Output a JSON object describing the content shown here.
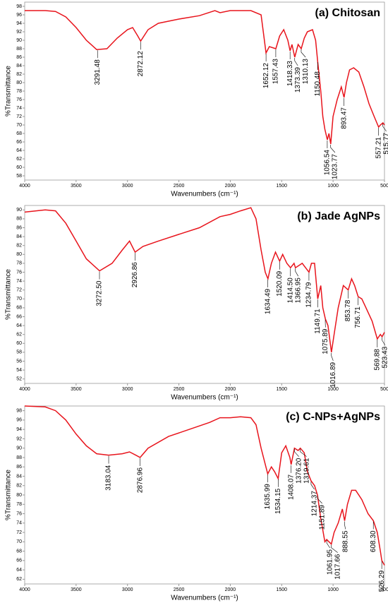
{
  "chart_data": [
    {
      "type": "line",
      "title": "(a) Chitosan",
      "xlabel": "Wavenumbers (cm⁻¹)",
      "ylabel": "%Transmittance",
      "color": "#e8141c",
      "xlim": [
        4000,
        500
      ],
      "xticks": [
        4000,
        3500,
        3000,
        2500,
        2000,
        1500,
        1000,
        500
      ],
      "ylim": [
        57,
        99
      ],
      "yticks": [
        58,
        60,
        62,
        64,
        66,
        68,
        70,
        72,
        74,
        76,
        78,
        80,
        82,
        84,
        86,
        88,
        90,
        92,
        94,
        96,
        98
      ],
      "x": [
        4000,
        3800,
        3700,
        3600,
        3500,
        3400,
        3300,
        3200,
        3100,
        3000,
        2950,
        2900,
        2872,
        2800,
        2700,
        2500,
        2300,
        2150,
        2100,
        2000,
        1900,
        1800,
        1700,
        1652,
        1620,
        1557,
        1520,
        1480,
        1440,
        1418,
        1400,
        1373,
        1340,
        1310,
        1280,
        1250,
        1200,
        1170,
        1150,
        1120,
        1100,
        1080,
        1056,
        1040,
        1023,
        1000,
        960,
        920,
        893,
        870,
        840,
        800,
        750,
        700,
        650,
        600,
        557,
        540,
        515,
        500
      ],
      "values": [
        97,
        97,
        96.8,
        95.5,
        93,
        90,
        87.8,
        88,
        90.5,
        92.5,
        93,
        91,
        89.8,
        92.5,
        94,
        95,
        95.8,
        97,
        96.5,
        97,
        97,
        97,
        96,
        87,
        88.5,
        88,
        91,
        92.5,
        90,
        87.5,
        89,
        86,
        89,
        88,
        90.5,
        92,
        92.5,
        90,
        85,
        78,
        72,
        69,
        66.5,
        68,
        65.5,
        72,
        76,
        79,
        76.5,
        80,
        83,
        83.5,
        82.5,
        79,
        75,
        72,
        69.5,
        70,
        70.5,
        70
      ],
      "peaks": [
        {
          "label": "3291.48",
          "x": 3291.48,
          "y": 87.8
        },
        {
          "label": "2872.12",
          "x": 2872.12,
          "y": 89.8
        },
        {
          "label": "1652.12",
          "x": 1652.12,
          "y": 87
        },
        {
          "label": "1557.43",
          "x": 1557.43,
          "y": 88
        },
        {
          "label": "1418.33",
          "x": 1418.33,
          "y": 87.5
        },
        {
          "label": "1373.39",
          "x": 1373.39,
          "y": 86
        },
        {
          "label": "1310.13",
          "x": 1310.13,
          "y": 88
        },
        {
          "label": "1150.48",
          "x": 1150.48,
          "y": 85
        },
        {
          "label": "1056.54",
          "x": 1056.54,
          "y": 66.5
        },
        {
          "label": "1023.77",
          "x": 1023.77,
          "y": 65.5
        },
        {
          "label": "893.47",
          "x": 893.47,
          "y": 76.5
        },
        {
          "label": "557.21",
          "x": 557.21,
          "y": 69.5
        },
        {
          "label": "515.77",
          "x": 515.77,
          "y": 70.5
        }
      ]
    },
    {
      "type": "line",
      "title": "(b) Jade AgNPs",
      "xlabel": "Wavenumbers (cm⁻¹)",
      "ylabel": "%Transmittance",
      "color": "#e8141c",
      "xlim": [
        4000,
        500
      ],
      "xticks": [
        4000,
        3500,
        3000,
        2500,
        2000,
        1500,
        1000,
        500
      ],
      "ylim": [
        51,
        91
      ],
      "yticks": [
        52,
        54,
        56,
        58,
        60,
        62,
        64,
        66,
        68,
        70,
        72,
        74,
        76,
        78,
        80,
        82,
        84,
        86,
        88,
        90
      ],
      "x": [
        4000,
        3800,
        3700,
        3600,
        3500,
        3400,
        3272,
        3150,
        3050,
        2980,
        2926,
        2850,
        2700,
        2500,
        2300,
        2100,
        2000,
        1900,
        1800,
        1750,
        1700,
        1660,
        1634,
        1600,
        1560,
        1520,
        1490,
        1450,
        1414,
        1380,
        1366,
        1300,
        1234,
        1210,
        1180,
        1149,
        1120,
        1100,
        1075,
        1050,
        1016,
        990,
        950,
        900,
        853,
        820,
        790,
        756,
        720,
        680,
        620,
        570,
        540,
        523,
        500
      ],
      "values": [
        89.5,
        90,
        89.8,
        87,
        83,
        79,
        76.3,
        78,
        81,
        83,
        80.5,
        81.8,
        83,
        84.5,
        86,
        88.5,
        89,
        89.8,
        90.5,
        88,
        81,
        76,
        74.5,
        78,
        80.5,
        78.5,
        80,
        78,
        77,
        78,
        77,
        78,
        76,
        78,
        78,
        70,
        73,
        68,
        65.5,
        64,
        58,
        62,
        68,
        73,
        72,
        74.5,
        73,
        70.5,
        70,
        68,
        65,
        61,
        62,
        61.5,
        62.5
      ],
      "peaks": [
        {
          "label": "3272.50",
          "x": 3272.5,
          "y": 76.3
        },
        {
          "label": "2926.86",
          "x": 2926.86,
          "y": 80.5
        },
        {
          "label": "1634.49",
          "x": 1634.49,
          "y": 74.5
        },
        {
          "label": "1520.09",
          "x": 1520.09,
          "y": 78.5
        },
        {
          "label": "1414.50",
          "x": 1414.5,
          "y": 77
        },
        {
          "label": "1366.95",
          "x": 1366.95,
          "y": 77
        },
        {
          "label": "1234.79",
          "x": 1234.79,
          "y": 76
        },
        {
          "label": "1149.71",
          "x": 1149.71,
          "y": 70
        },
        {
          "label": "1075.89",
          "x": 1075.89,
          "y": 65.5
        },
        {
          "label": "1016.89",
          "x": 1016.89,
          "y": 58
        },
        {
          "label": "853.78",
          "x": 853.78,
          "y": 72
        },
        {
          "label": "756.71",
          "x": 756.71,
          "y": 70.5
        },
        {
          "label": "569.88",
          "x": 569.88,
          "y": 61
        },
        {
          "label": "523.43",
          "x": 523.43,
          "y": 61.5
        }
      ]
    },
    {
      "type": "line",
      "title": "(c) C-NPs+AgNPs",
      "xlabel": "Wavenumbers (cm⁻¹)",
      "ylabel": "%Transmittance",
      "color": "#e8141c",
      "xlim": [
        4000,
        500
      ],
      "xticks": [
        4000,
        3500,
        3000,
        2500,
        2000,
        1500,
        1000,
        500
      ],
      "ylim": [
        61,
        99
      ],
      "yticks": [
        62,
        64,
        66,
        68,
        70,
        72,
        74,
        76,
        78,
        80,
        82,
        84,
        86,
        88,
        90,
        92,
        94,
        96,
        98
      ],
      "x": [
        4000,
        3800,
        3700,
        3600,
        3500,
        3400,
        3300,
        3183,
        3050,
        2980,
        2920,
        2877,
        2800,
        2600,
        2400,
        2200,
        2100,
        2000,
        1900,
        1800,
        1750,
        1700,
        1636,
        1600,
        1570,
        1534,
        1500,
        1460,
        1420,
        1408,
        1376,
        1340,
        1319,
        1280,
        1250,
        1214,
        1180,
        1152,
        1120,
        1080,
        1062,
        1040,
        1017,
        990,
        950,
        910,
        888,
        860,
        820,
        780,
        720,
        660,
        608,
        570,
        540,
        526,
        500
      ],
      "values": [
        99,
        98.8,
        98,
        96,
        93,
        90.5,
        88.8,
        88.5,
        88.8,
        89.2,
        88.5,
        88,
        90,
        92.5,
        94,
        95.5,
        96.5,
        96.5,
        96.7,
        96.5,
        95,
        90,
        84.5,
        86,
        85,
        83.5,
        89,
        90.5,
        88,
        86.5,
        90,
        89.5,
        90,
        89,
        85,
        83,
        82,
        80,
        75,
        70,
        70.5,
        70,
        69.5,
        72,
        74,
        77,
        74.5,
        78,
        81,
        81,
        79,
        76,
        74.5,
        72,
        68,
        66,
        65
      ],
      "peaks": [
        {
          "label": "3183.04",
          "x": 3183.04,
          "y": 88.5
        },
        {
          "label": "2876.96",
          "x": 2876.96,
          "y": 88
        },
        {
          "label": "1635.99",
          "x": 1635.99,
          "y": 84.5
        },
        {
          "label": "1534.15",
          "x": 1534.15,
          "y": 83.5
        },
        {
          "label": "1408.07",
          "x": 1408.07,
          "y": 86.5
        },
        {
          "label": "1376.20",
          "x": 1376.2,
          "y": 90
        },
        {
          "label": "1319.61",
          "x": 1319.61,
          "y": 90
        },
        {
          "label": "1214.37",
          "x": 1214.37,
          "y": 83
        },
        {
          "label": "1151.89",
          "x": 1151.89,
          "y": 80
        },
        {
          "label": "1061.95",
          "x": 1061.95,
          "y": 70.5
        },
        {
          "label": "1017.66",
          "x": 1017.66,
          "y": 69.5
        },
        {
          "label": "888.55",
          "x": 888.55,
          "y": 74.5
        },
        {
          "label": "608.30",
          "x": 608.3,
          "y": 74.5
        },
        {
          "label": "526.29",
          "x": 526.29,
          "y": 66
        }
      ]
    }
  ]
}
